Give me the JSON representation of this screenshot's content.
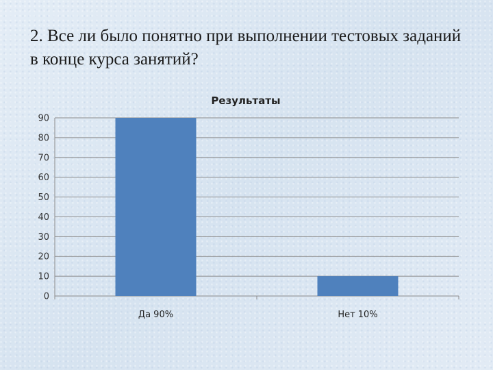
{
  "slide": {
    "title": "2. Все ли было понятно при выполнении тестовых заданий в конце курса занятий?"
  },
  "chart_data": {
    "type": "bar",
    "title": "Результаты",
    "categories": [
      "Да 90%",
      "Нет 10%"
    ],
    "values": [
      90,
      10
    ],
    "ylim": [
      0,
      90
    ],
    "yticks": [
      0,
      10,
      20,
      30,
      40,
      50,
      60,
      70,
      80,
      90
    ],
    "grid": true,
    "bar_color": "#4f81bd",
    "grid_color": "#8c8c8c"
  }
}
